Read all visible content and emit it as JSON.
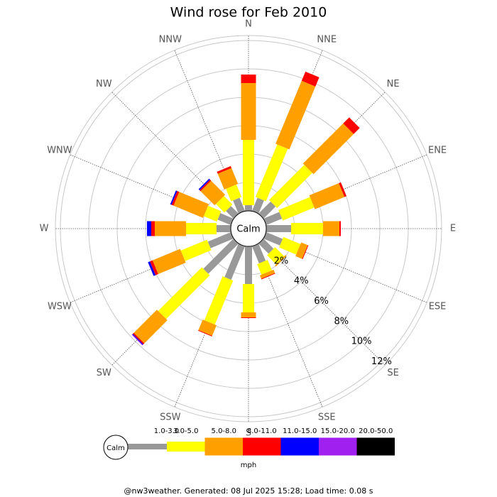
{
  "chart_data": {
    "type": "windrose",
    "title": "Wind rose for Feb 2010",
    "calm_label": "Calm",
    "categories": [
      "N",
      "NNE",
      "NE",
      "ENE",
      "E",
      "ESE",
      "SE",
      "SSE",
      "S",
      "SSW",
      "SW",
      "WSW",
      "W",
      "WNW",
      "NW",
      "NNW"
    ],
    "series": [
      {
        "name": "1.0-3.0",
        "color": "#999999",
        "values": [
          0.4,
          1.0,
          1.2,
          1.2,
          1.75,
          1.25,
          1.0,
          1.3,
          2.65,
          2.55,
          3.0,
          1.75,
          1.0,
          1.0,
          0.75,
          1.0
        ]
      },
      {
        "name": "3.0-5.0",
        "color": "#ffff00",
        "values": [
          4.6,
          4.0,
          3.5,
          2.4,
          2.25,
          1.3,
          0.9,
          0.8,
          2.0,
          3.35,
          4.35,
          2.0,
          2.15,
          1.0,
          0.85,
          0.95
        ]
      },
      {
        "name": "5.0-8.0",
        "color": "#ffa000",
        "values": [
          4.0,
          4.8,
          4.0,
          2.25,
          1.15,
          0.5,
          0.1,
          0.25,
          0.35,
          0.8,
          2.3,
          2.1,
          2.2,
          2.25,
          1.4,
          1.2
        ]
      },
      {
        "name": "8.0-11.0",
        "color": "#ff0000",
        "values": [
          0.6,
          0.7,
          0.6,
          0.15,
          0.1,
          0.05,
          0,
          0.05,
          0.05,
          0.05,
          0.1,
          0.2,
          0.25,
          0.15,
          0.1,
          0.15
        ]
      },
      {
        "name": "11.0-15.0",
        "color": "#0000ff",
        "values": [
          0,
          0,
          0,
          0,
          0,
          0,
          0,
          0,
          0,
          0,
          0.05,
          0.15,
          0.3,
          0.1,
          0.1,
          0
        ]
      },
      {
        "name": "15.0-20.0",
        "color": "#a020f0",
        "values": [
          0,
          0,
          0,
          0,
          0,
          0,
          0,
          0,
          0,
          0,
          0.05,
          0,
          0,
          0,
          0,
          0
        ]
      },
      {
        "name": "20.0-50.0",
        "color": "#000000",
        "values": [
          0,
          0,
          0,
          0,
          0,
          0,
          0,
          0,
          0,
          0,
          0,
          0,
          0,
          0,
          0,
          0
        ]
      }
    ],
    "ylim": [
      0,
      12.35
    ],
    "yticks": [
      {
        "value": 2,
        "label": "2%"
      },
      {
        "value": 4,
        "label": "4%"
      },
      {
        "value": 6,
        "label": "6%"
      },
      {
        "value": 8,
        "label": "8%"
      },
      {
        "value": 10,
        "label": "10%"
      },
      {
        "value": 12,
        "label": "12%"
      }
    ],
    "legend_unit": "mph",
    "footer": "@nw3weather.  Generated: 08 Jul 2025 15:28; Load time: 0.08 s"
  }
}
